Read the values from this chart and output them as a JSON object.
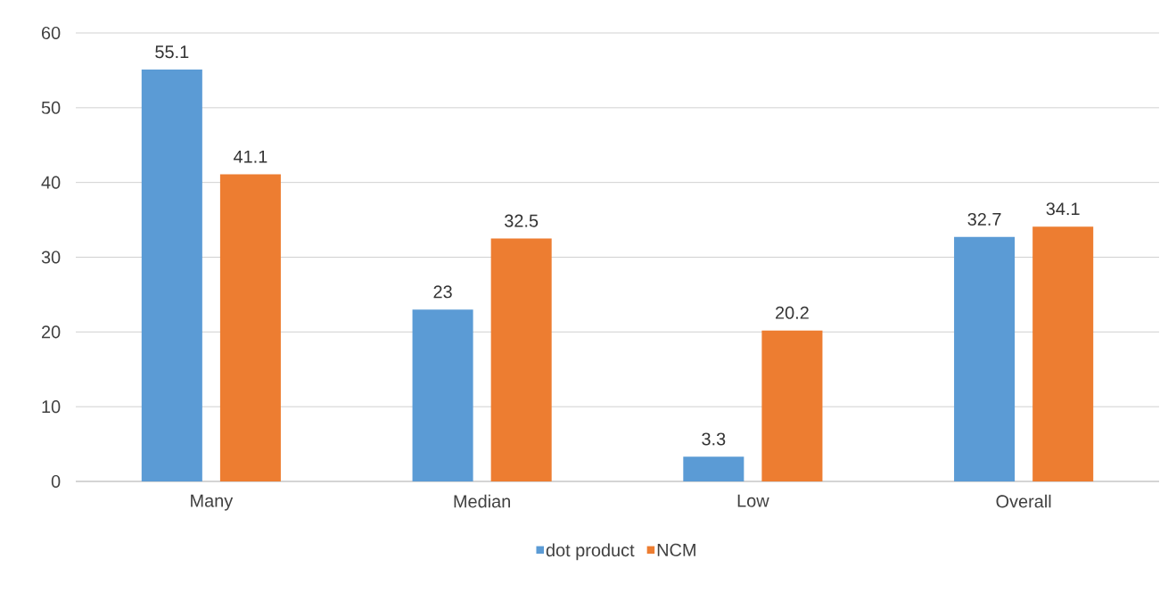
{
  "chart_data": {
    "type": "bar",
    "categories": [
      "Many",
      "Median",
      "Low",
      "Overall"
    ],
    "series": [
      {
        "name": "dot product",
        "color": "#5b9bd5",
        "values": [
          55.1,
          23,
          3.3,
          32.7
        ]
      },
      {
        "name": "NCM",
        "color": "#ed7d31",
        "values": [
          41.1,
          32.5,
          20.2,
          34.1
        ]
      }
    ],
    "ylim": [
      0,
      60
    ],
    "yticks": [
      0,
      10,
      20,
      30,
      40,
      50,
      60
    ],
    "grid": "y",
    "legend": "bottom",
    "data_labels": true
  }
}
